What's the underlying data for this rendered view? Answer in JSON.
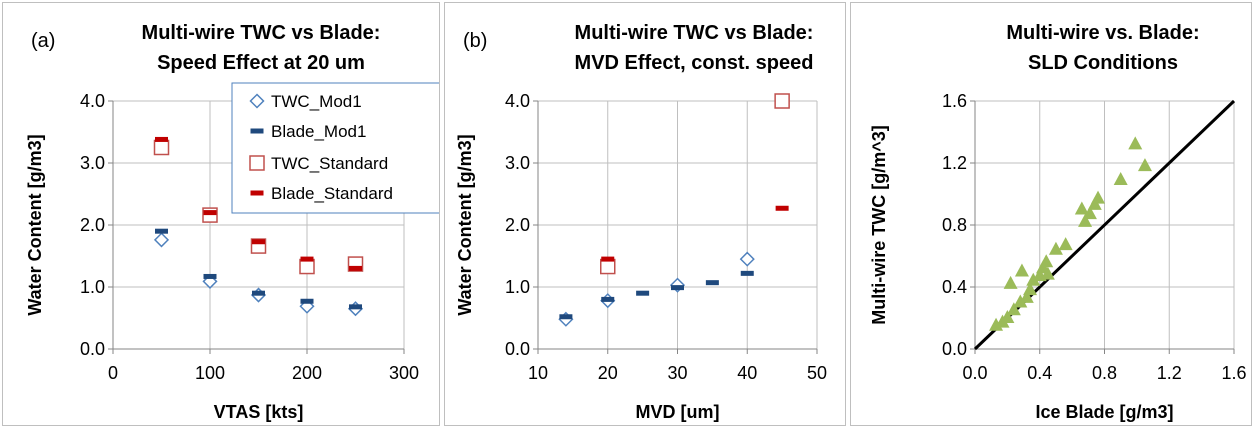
{
  "colors": {
    "mod1_marker": "#4f81bd",
    "mod1_bar": "#1f497d",
    "std_marker": "#c0504d",
    "std_bar": "#c00000",
    "sld_points": "#9bbb59",
    "ref_line": "#000000",
    "legend_border": "#4f81bd"
  },
  "chart_data": [
    {
      "type": "scatter",
      "panel_label": "(a)",
      "title": [
        "Multi-wire TWC vs Blade:",
        "Speed Effect at 20 um"
      ],
      "xlabel": "VTAS [kts]",
      "ylabel": "Water Content [g/m3]",
      "xlim": [
        0,
        300
      ],
      "ylim": [
        0,
        4
      ],
      "xticks": [
        "0",
        "100",
        "200",
        "300"
      ],
      "yticks": [
        "0.0",
        "1.0",
        "2.0",
        "3.0",
        "4.0"
      ],
      "grid": true,
      "legend_position": "top-right",
      "series": [
        {
          "name": "TWC_Mod1",
          "marker": "diamond",
          "points": [
            [
              50,
              1.76
            ],
            [
              100,
              1.09
            ],
            [
              150,
              0.87
            ],
            [
              200,
              0.69
            ],
            [
              250,
              0.65
            ]
          ]
        },
        {
          "name": "Blade_Mod1",
          "marker": "dash",
          "points": [
            [
              50,
              1.9
            ],
            [
              100,
              1.17
            ],
            [
              150,
              0.9
            ],
            [
              200,
              0.77
            ],
            [
              250,
              0.68
            ]
          ]
        },
        {
          "name": "TWC_Standard",
          "marker": "square",
          "points": [
            [
              50,
              3.25
            ],
            [
              100,
              2.16
            ],
            [
              150,
              1.66
            ],
            [
              200,
              1.33
            ],
            [
              250,
              1.37
            ]
          ]
        },
        {
          "name": "Blade_Standard",
          "marker": "dash",
          "points": [
            [
              50,
              3.38
            ],
            [
              100,
              2.2
            ],
            [
              150,
              1.73
            ],
            [
              200,
              1.45
            ],
            [
              250,
              1.3
            ]
          ]
        }
      ]
    },
    {
      "type": "scatter",
      "panel_label": "(b)",
      "title": [
        "Multi-wire TWC vs Blade:",
        "MVD Effect, const. speed"
      ],
      "xlabel": "MVD [um]",
      "ylabel": "Water Content [g/m3]",
      "xlim": [
        10,
        50
      ],
      "ylim": [
        0,
        4
      ],
      "xticks": [
        "10",
        "20",
        "30",
        "40",
        "50"
      ],
      "yticks": [
        "0.0",
        "1.0",
        "2.0",
        "3.0",
        "4.0"
      ],
      "grid": true,
      "series": [
        {
          "name": "TWC_Mod1",
          "marker": "diamond",
          "points": [
            [
              14,
              0.48
            ],
            [
              20,
              0.78
            ],
            [
              30,
              1.03
            ],
            [
              40,
              1.45
            ]
          ]
        },
        {
          "name": "Blade_Mod1",
          "marker": "dash",
          "points": [
            [
              14,
              0.52
            ],
            [
              20,
              0.8
            ],
            [
              25,
              0.9
            ],
            [
              30,
              0.99
            ],
            [
              35,
              1.07
            ],
            [
              40,
              1.22
            ]
          ]
        },
        {
          "name": "TWC_Standard",
          "marker": "square",
          "points": [
            [
              20,
              1.33
            ],
            [
              45,
              4.0
            ]
          ]
        },
        {
          "name": "Blade_Standard",
          "marker": "dash",
          "points": [
            [
              20,
              1.45
            ],
            [
              45,
              2.27
            ]
          ]
        }
      ]
    },
    {
      "type": "scatter",
      "panel_label": "",
      "title": [
        "Multi-wire  vs.  Blade:",
        "SLD Conditions"
      ],
      "xlabel": "Ice Blade [g/m3]",
      "ylabel": "Multi-wire TWC [g/m^3]",
      "xlim": [
        0,
        1.6
      ],
      "ylim": [
        0,
        1.6
      ],
      "xticks": [
        "0.0",
        "0.4",
        "0.8",
        "1.2",
        "1.6"
      ],
      "yticks": [
        "0.0",
        "0.4",
        "0.8",
        "1.2",
        "1.6"
      ],
      "grid": true,
      "reference_line": [
        [
          0,
          0
        ],
        [
          1.6,
          1.6
        ]
      ],
      "series": [
        {
          "marker": "triangle",
          "points": [
            [
              0.13,
              0.15
            ],
            [
              0.17,
              0.17
            ],
            [
              0.2,
              0.2
            ],
            [
              0.24,
              0.25
            ],
            [
              0.22,
              0.42
            ],
            [
              0.29,
              0.5
            ],
            [
              0.28,
              0.3
            ],
            [
              0.32,
              0.33
            ],
            [
              0.34,
              0.38
            ],
            [
              0.36,
              0.44
            ],
            [
              0.4,
              0.47
            ],
            [
              0.42,
              0.52
            ],
            [
              0.44,
              0.56
            ],
            [
              0.45,
              0.48
            ],
            [
              0.5,
              0.64
            ],
            [
              0.56,
              0.67
            ],
            [
              0.66,
              0.9
            ],
            [
              0.68,
              0.82
            ],
            [
              0.71,
              0.87
            ],
            [
              0.74,
              0.93
            ],
            [
              0.76,
              0.97
            ],
            [
              0.9,
              1.09
            ],
            [
              0.99,
              1.32
            ],
            [
              1.05,
              1.18
            ]
          ]
        }
      ]
    }
  ]
}
